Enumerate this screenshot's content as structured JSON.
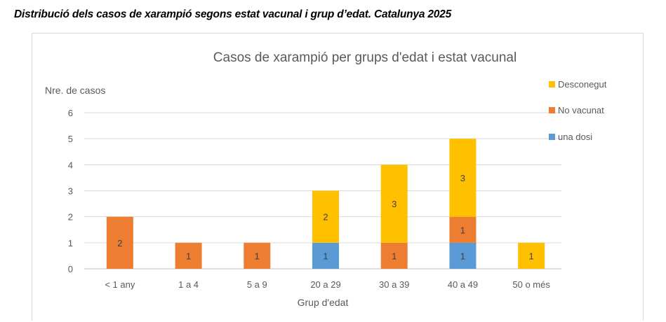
{
  "heading": "Distribució dels casos de xarampió segons estat vacunal i grup d’edat. Catalunya 2025",
  "chart_data": {
    "type": "bar",
    "stacked": true,
    "title": "Casos de xarampió per grups d'edat i estat vacunal",
    "xlabel": "Grup d'edat",
    "ylabel": "Nre. de casos",
    "ylim": [
      0,
      6
    ],
    "yticks": [
      0,
      1,
      2,
      3,
      4,
      5,
      6
    ],
    "grid": true,
    "legend_position": "right",
    "categories": [
      "< 1 any",
      "1 a 4",
      "5 a 9",
      "20 a 29",
      "30 a 39",
      "40 a 49",
      "50 o més"
    ],
    "series": [
      {
        "name": "una dosi",
        "color": "#5b9bd5",
        "values": [
          0,
          0,
          0,
          1,
          0,
          1,
          0
        ]
      },
      {
        "name": "No vacunat",
        "color": "#ed7d31",
        "values": [
          2,
          1,
          1,
          0,
          1,
          1,
          0
        ]
      },
      {
        "name": "Desconegut",
        "color": "#ffc000",
        "values": [
          0,
          0,
          0,
          2,
          3,
          3,
          1
        ]
      }
    ],
    "legend_order": [
      "Desconegut",
      "No vacunat",
      "una dosi"
    ]
  }
}
